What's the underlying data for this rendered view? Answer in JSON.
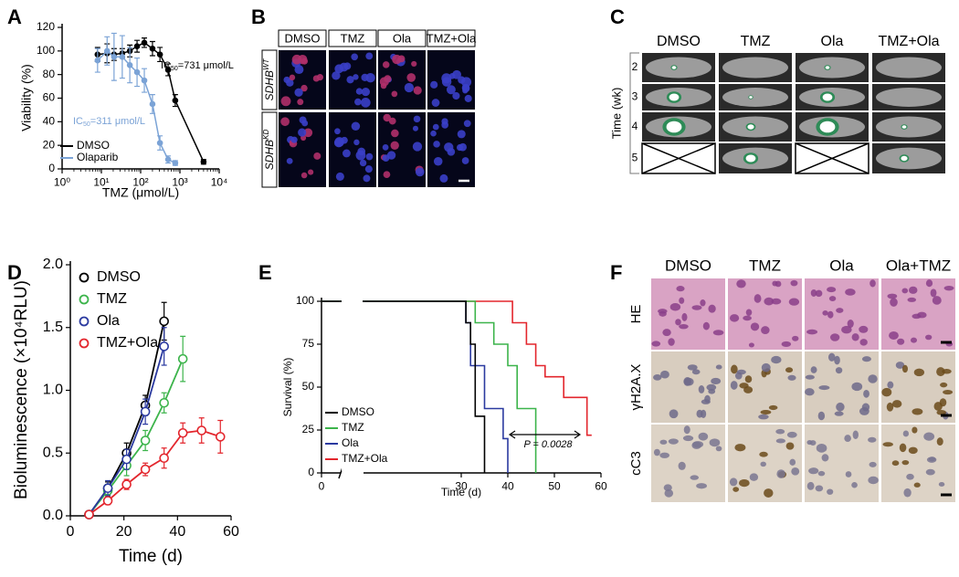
{
  "panels": [
    "A",
    "B",
    "C",
    "D",
    "E",
    "F"
  ],
  "chart_data": [
    {
      "type": "line",
      "xscale": "log",
      "xlim": [
        1,
        10000
      ],
      "xticks": [
        {
          "value": 1,
          "label": "10⁰"
        },
        {
          "value": 10,
          "label": "10¹"
        },
        {
          "value": 100,
          "label": "10²"
        },
        {
          "value": 1000,
          "label": "10³"
        },
        {
          "value": 10000,
          "label": "10⁴"
        }
      ],
      "ylim": [
        0,
        120
      ],
      "yticks": [
        0,
        20,
        40,
        60,
        80,
        100,
        120
      ],
      "xlabel": "TMZ (μmol/L)",
      "ylabel": "Viability (%)",
      "legend": "lower left",
      "markers": "filled",
      "series": [
        {
          "name": "DMSO",
          "color": "#000000",
          "x": [
            8,
            14,
            21,
            34,
            53,
            81,
            124,
            200,
            310,
            500,
            760,
            4000
          ],
          "values": [
            97,
            98,
            97,
            98,
            100,
            104,
            107,
            102,
            97,
            84,
            58,
            6
          ],
          "errors": [
            6,
            8,
            5,
            4,
            5,
            5,
            4,
            6,
            6,
            5,
            5,
            2
          ]
        },
        {
          "name": "Olaparib",
          "color": "#7ba3d6",
          "x": [
            8,
            14,
            21,
            34,
            53,
            81,
            124,
            200,
            310,
            500,
            760
          ],
          "values": [
            92,
            100,
            95,
            95,
            88,
            82,
            75,
            55,
            22,
            8,
            5
          ],
          "errors": [
            10,
            12,
            20,
            18,
            15,
            12,
            10,
            8,
            6,
            3,
            2
          ]
        }
      ],
      "annotations": [
        {
          "prefix": "IC",
          "sub": "50",
          "suffix": "=731 μmol/L",
          "color": "#000000"
        },
        {
          "prefix": "IC",
          "sub": "50",
          "suffix": "=311 μmol/L",
          "color": "#7ba3d6"
        }
      ]
    },
    {
      "type": "line",
      "xlim": [
        0,
        60
      ],
      "xticks": [
        0,
        20,
        40,
        60
      ],
      "ylim": [
        0,
        2
      ],
      "yticks": [
        {
          "value": 0,
          "label": "0.0"
        },
        0.5,
        {
          "value": 1,
          "label": "1.0"
        },
        1.5,
        {
          "value": 2,
          "label": "2.0"
        }
      ],
      "xlabel": "Time (d)",
      "ylabel": "Bioluminescence (×10⁴RLU)",
      "legend": "upper left",
      "markers": "open",
      "series": [
        {
          "name": "DMSO",
          "color": "#000000",
          "x": [
            7,
            14,
            21,
            28,
            35
          ],
          "values": [
            0.01,
            0.22,
            0.5,
            0.88,
            1.55
          ],
          "errors": [
            0.02,
            0.05,
            0.08,
            0.08,
            0.15
          ]
        },
        {
          "name": "TMZ",
          "color": "#3cb44b",
          "x": [
            7,
            14,
            21,
            28,
            35,
            42
          ],
          "values": [
            0.01,
            0.2,
            0.4,
            0.6,
            0.9,
            1.25
          ],
          "errors": [
            0.02,
            0.05,
            0.08,
            0.08,
            0.08,
            0.18
          ]
        },
        {
          "name": "Ola",
          "color": "#2b3aa0",
          "x": [
            7,
            14,
            21,
            28,
            35
          ],
          "values": [
            0.01,
            0.22,
            0.45,
            0.83,
            1.35
          ],
          "errors": [
            0.02,
            0.06,
            0.08,
            0.1,
            0.15
          ]
        },
        {
          "name": "TMZ+Ola",
          "color": "#e3262d",
          "x": [
            7,
            14,
            21,
            28,
            35,
            42,
            49,
            56
          ],
          "values": [
            0.01,
            0.12,
            0.25,
            0.37,
            0.46,
            0.66,
            0.68,
            0.63
          ],
          "errors": [
            0.02,
            0.03,
            0.04,
            0.05,
            0.08,
            0.08,
            0.1,
            0.13
          ]
        }
      ]
    },
    {
      "type": "step",
      "xlim": [
        0,
        60
      ],
      "xticks": [
        0,
        30,
        40,
        50,
        60
      ],
      "ylim": [
        0,
        100
      ],
      "yticks": [
        0,
        25,
        50,
        75,
        100
      ],
      "xlabel": "Time (d)",
      "ylabel": "Survival (%)",
      "legend": "lower left",
      "series": [
        {
          "name": "DMSO",
          "color": "#000000",
          "x": [
            0,
            31,
            32,
            33,
            35
          ],
          "values": [
            100,
            87.5,
            75,
            33,
            0
          ]
        },
        {
          "name": "TMZ",
          "color": "#3cb44b",
          "x": [
            0,
            33,
            37,
            40,
            42,
            46
          ],
          "values": [
            100,
            87.5,
            75,
            62.5,
            37.5,
            0
          ]
        },
        {
          "name": "Ola",
          "color": "#2b3aa0",
          "x": [
            0,
            31,
            32,
            35,
            39,
            40
          ],
          "values": [
            100,
            87.5,
            62.5,
            37.5,
            20,
            0
          ]
        },
        {
          "name": "TMZ+Ola",
          "color": "#e3262d",
          "x": [
            0,
            41,
            44,
            46,
            48,
            52,
            57,
            58
          ],
          "values": [
            100,
            87.5,
            75,
            62.5,
            56,
            44,
            22,
            22
          ]
        }
      ],
      "annotations": [
        {
          "text": "P = 0.0028",
          "color": "#000000"
        }
      ]
    }
  ],
  "panel_b": {
    "columns": [
      "DMSO",
      "TMZ",
      "Ola",
      "TMZ+Ola"
    ],
    "rows": [
      {
        "text": "SDHB",
        "sup": "WT"
      },
      {
        "text": "SDHB",
        "sup": "KD"
      }
    ]
  },
  "panel_c": {
    "columns": [
      "DMSO",
      "TMZ",
      "Ola",
      "TMZ+Ola"
    ],
    "axis_label": "Time (wk)",
    "rows": [
      "2",
      "3",
      "4",
      "5"
    ]
  },
  "panel_f": {
    "columns": [
      "DMSO",
      "TMZ",
      "Ola",
      "Ola+TMZ"
    ],
    "rows": [
      "HE",
      "γH2A.X",
      "cC3"
    ]
  }
}
